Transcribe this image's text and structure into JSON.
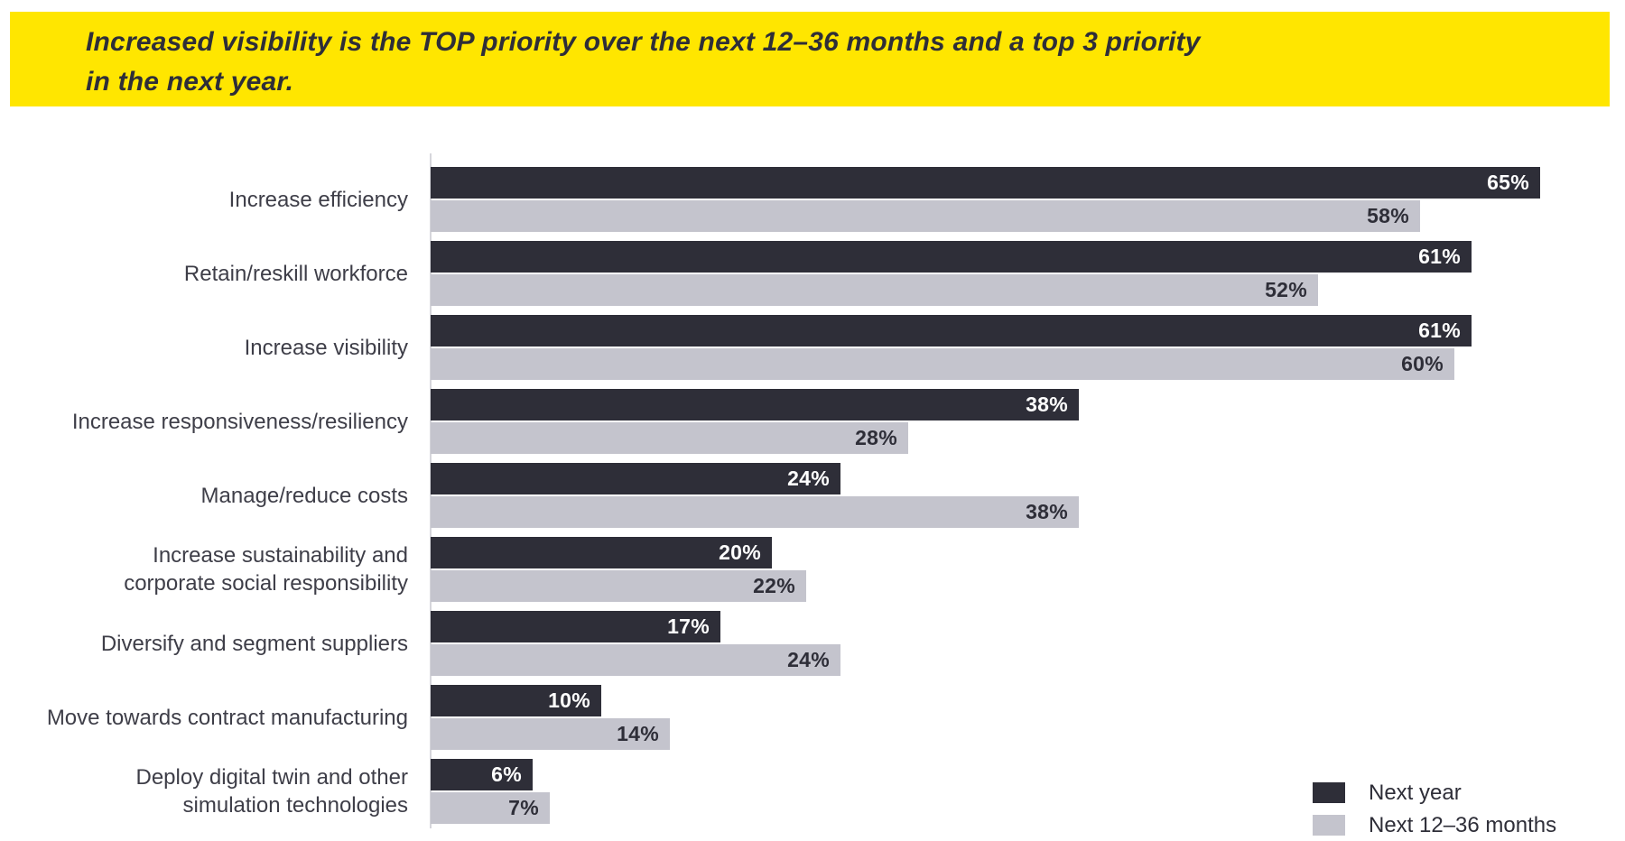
{
  "banner": {
    "text": "Increased visibility is the TOP priority over the next 12–36 months and a top 3 priority\nin the next year.",
    "background_color": "#FFE600",
    "text_color": "#2E2E38"
  },
  "chart_data": {
    "type": "bar",
    "orientation": "horizontal",
    "title": "",
    "xlabel": "",
    "ylabel": "",
    "xlim": [
      0,
      70
    ],
    "grid": false,
    "value_suffix": "%",
    "value_labels_inside_bars": true,
    "legend_position": "bottom-right",
    "categories": [
      "Increase efficiency",
      "Retain/reskill workforce",
      "Increase visibility",
      "Increase responsiveness/resiliency",
      "Manage/reduce costs",
      "Increase sustainability and\ncorporate social responsibility",
      "Diversify and segment suppliers",
      "Move towards contract manufacturing",
      "Deploy digital twin and other\nsimulation technologies"
    ],
    "series": [
      {
        "name": "Next year",
        "color": "#2E2E38",
        "label_color": "#ffffff",
        "values": [
          65,
          61,
          61,
          38,
          24,
          20,
          17,
          10,
          6
        ]
      },
      {
        "name": "Next 12–36 months",
        "color": "#C4C4CD",
        "label_color": "#2E2E38",
        "values": [
          58,
          52,
          60,
          28,
          38,
          22,
          24,
          14,
          7
        ]
      }
    ]
  }
}
